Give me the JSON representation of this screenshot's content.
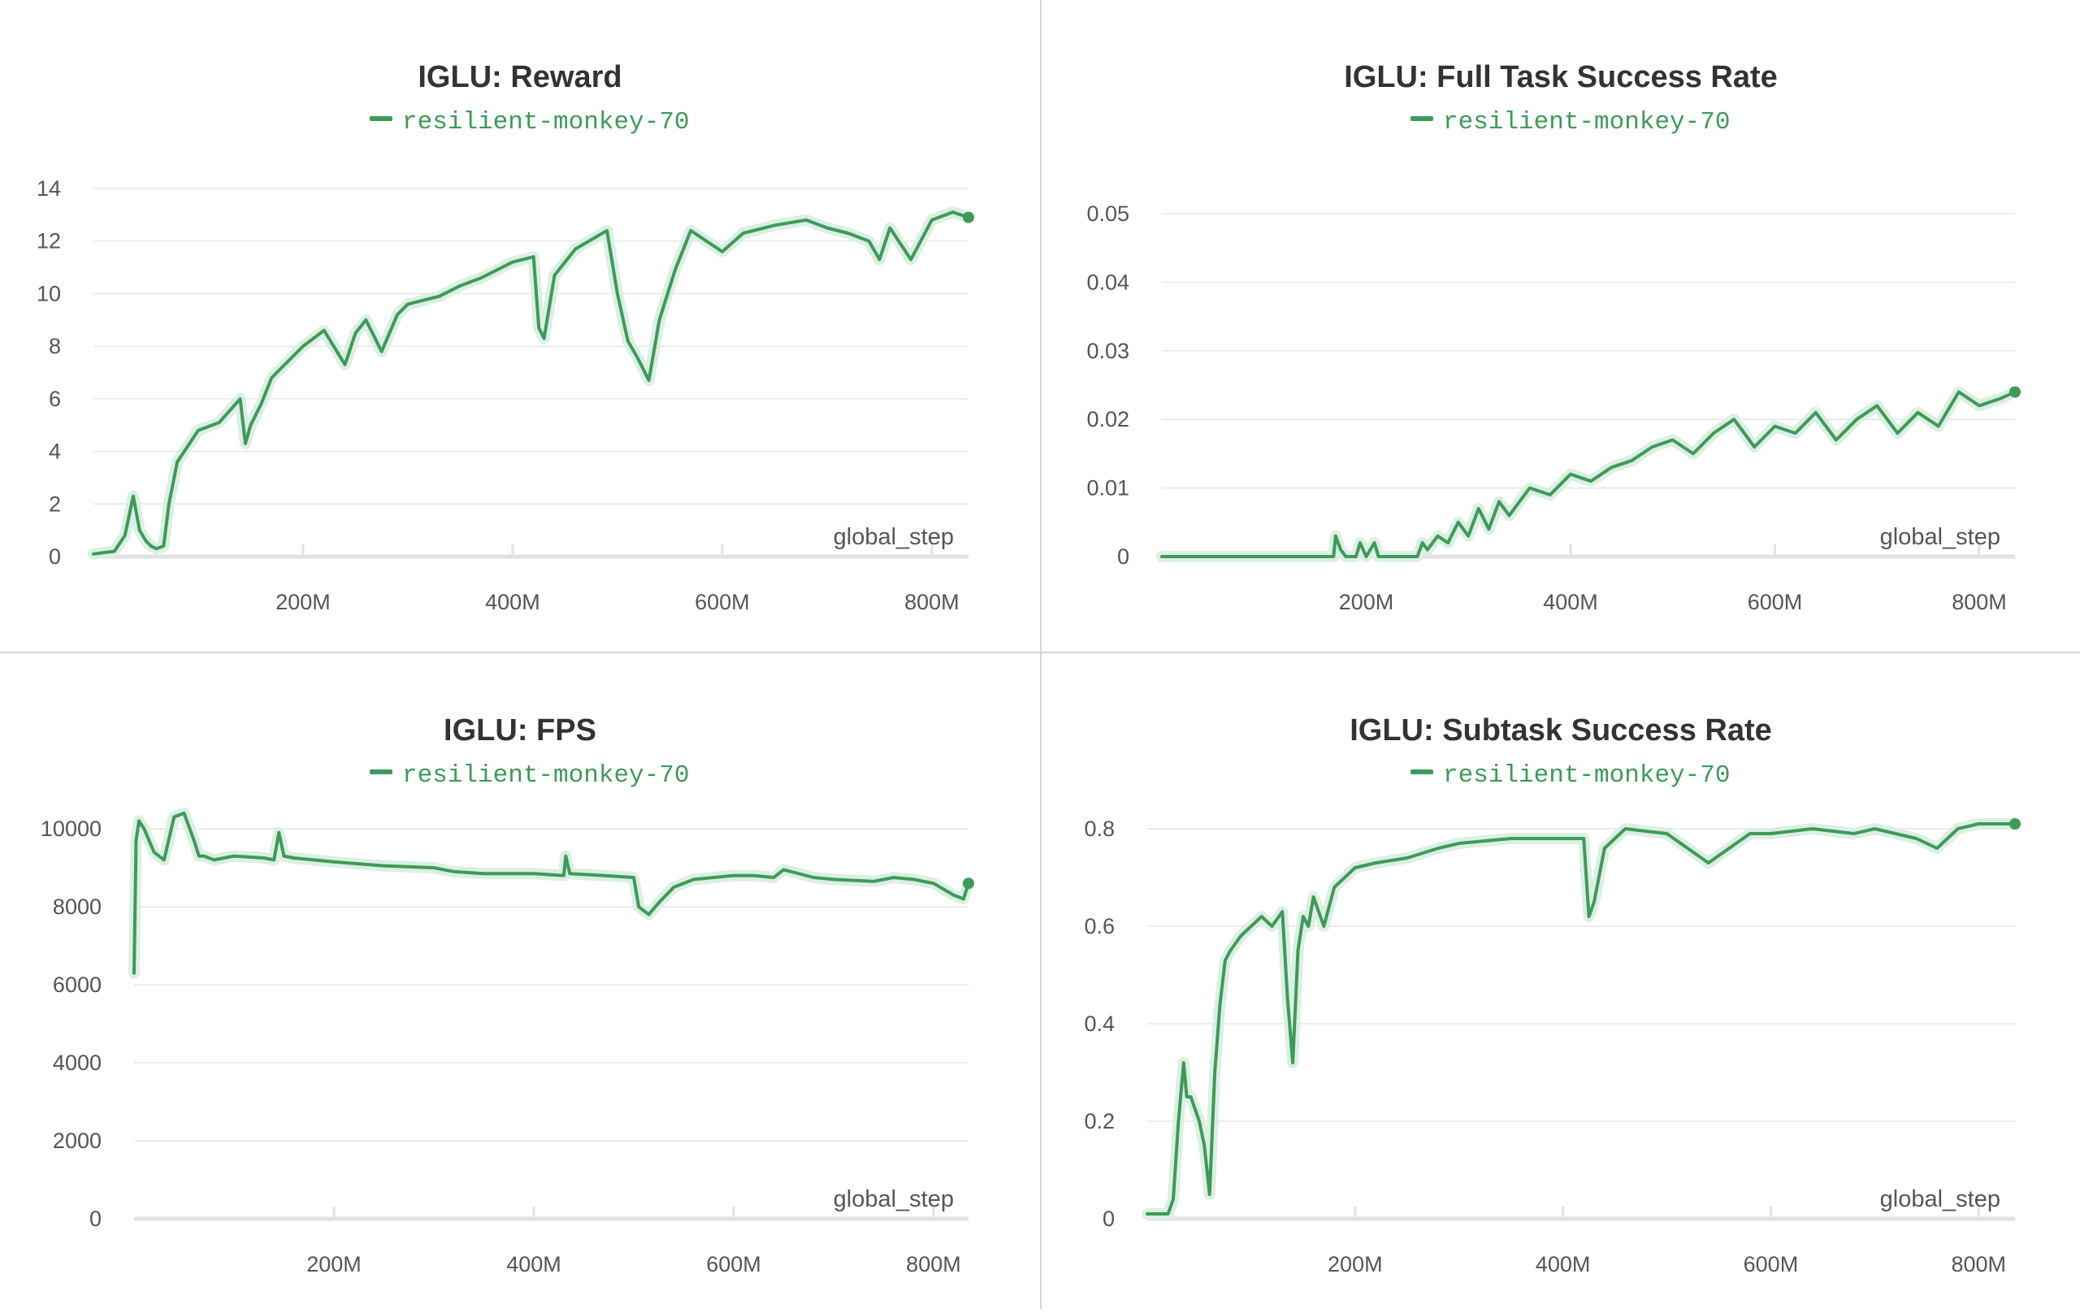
{
  "colors": {
    "series": "#3e9a5a",
    "raw": "#dcefe3",
    "grid": "#e6e6e6",
    "axis": "#e2e2e2",
    "text": "#555555",
    "title": "#333333",
    "divider": "#d6d6d6"
  },
  "chart_data": [
    {
      "type": "line",
      "title": "IGLU: Reward",
      "xlabel": "global_step",
      "ylabel": "",
      "xlim": [
        0,
        835
      ],
      "ylim": [
        0,
        14
      ],
      "x_unit": "M",
      "yticks": [
        "0",
        "2",
        "4",
        "6",
        "8",
        "10",
        "12",
        "14"
      ],
      "xticks": [
        "200M",
        "400M",
        "600M",
        "800M"
      ],
      "grid": true,
      "legend": "top-center",
      "series": [
        {
          "name": "resilient-monkey-70",
          "color": "#3e9a5a",
          "x": [
            0,
            20,
            30,
            38,
            44,
            50,
            55,
            60,
            67,
            72,
            80,
            90,
            100,
            120,
            140,
            145,
            150,
            160,
            170,
            180,
            190,
            200,
            220,
            240,
            250,
            260,
            275,
            290,
            300,
            330,
            350,
            370,
            400,
            420,
            425,
            430,
            440,
            460,
            490,
            500,
            510,
            520,
            530,
            540,
            555,
            570,
            600,
            620,
            650,
            680,
            700,
            720,
            740,
            750,
            760,
            780,
            800,
            820,
            835
          ],
          "y": [
            0.1,
            0.2,
            0.8,
            2.3,
            1.0,
            0.6,
            0.4,
            0.3,
            0.4,
            2.0,
            3.6,
            4.2,
            4.8,
            5.1,
            6.0,
            4.3,
            5.0,
            5.8,
            6.8,
            7.2,
            7.6,
            8.0,
            8.6,
            7.3,
            8.5,
            9.0,
            7.8,
            9.2,
            9.6,
            9.9,
            10.3,
            10.6,
            11.2,
            11.4,
            8.7,
            8.3,
            10.7,
            11.7,
            12.4,
            10.0,
            8.2,
            7.5,
            6.7,
            9.0,
            10.9,
            12.4,
            11.6,
            12.3,
            12.6,
            12.8,
            12.5,
            12.3,
            12.0,
            11.3,
            12.5,
            11.3,
            12.8,
            13.1,
            12.9
          ]
        }
      ]
    },
    {
      "type": "line",
      "title": "IGLU: Full Task Success Rate",
      "xlabel": "global_step",
      "ylabel": "",
      "xlim": [
        0,
        835
      ],
      "ylim": [
        0,
        0.05
      ],
      "x_unit": "M",
      "yticks": [
        "0",
        "0.01",
        "0.02",
        "0.03",
        "0.04",
        "0.05"
      ],
      "xticks": [
        "200M",
        "400M",
        "600M",
        "800M"
      ],
      "grid": true,
      "legend": "top-center",
      "series": [
        {
          "name": "resilient-monkey-70",
          "color": "#3e9a5a",
          "x": [
            0,
            168,
            170,
            175,
            180,
            190,
            194,
            200,
            208,
            212,
            215,
            250,
            255,
            260,
            270,
            280,
            290,
            300,
            310,
            320,
            330,
            340,
            360,
            380,
            400,
            420,
            440,
            460,
            480,
            500,
            520,
            540,
            560,
            580,
            600,
            620,
            640,
            660,
            680,
            700,
            720,
            740,
            760,
            780,
            800,
            820,
            835
          ],
          "y": [
            0,
            0,
            0.003,
            0.001,
            0,
            0,
            0.002,
            0,
            0.002,
            0,
            0,
            0,
            0.002,
            0.001,
            0.003,
            0.002,
            0.005,
            0.003,
            0.007,
            0.004,
            0.008,
            0.006,
            0.01,
            0.009,
            0.012,
            0.011,
            0.013,
            0.014,
            0.016,
            0.017,
            0.015,
            0.018,
            0.02,
            0.016,
            0.019,
            0.018,
            0.021,
            0.017,
            0.02,
            0.022,
            0.018,
            0.021,
            0.019,
            0.024,
            0.022,
            0.023,
            0.024
          ]
        }
      ]
    },
    {
      "type": "line",
      "title": "IGLU: FPS",
      "xlabel": "global_step",
      "ylabel": "",
      "xlim": [
        0,
        835
      ],
      "ylim": [
        0,
        10000
      ],
      "x_unit": "M",
      "yticks": [
        "0",
        "2000",
        "4000",
        "6000",
        "8000",
        "10000"
      ],
      "xticks": [
        "200M",
        "400M",
        "600M",
        "800M"
      ],
      "grid": true,
      "legend": "top-center",
      "series": [
        {
          "name": "resilient-monkey-70",
          "color": "#3e9a5a",
          "x": [
            0,
            2,
            5,
            10,
            20,
            30,
            40,
            50,
            60,
            65,
            70,
            80,
            100,
            130,
            140,
            145,
            150,
            160,
            200,
            250,
            300,
            320,
            350,
            400,
            430,
            432,
            436,
            470,
            500,
            505,
            515,
            525,
            540,
            560,
            600,
            620,
            640,
            650,
            680,
            700,
            740,
            760,
            780,
            800,
            820,
            830,
            835
          ],
          "y": [
            6300,
            9700,
            10200,
            10000,
            9400,
            9200,
            10300,
            10400,
            9700,
            9300,
            9300,
            9200,
            9300,
            9250,
            9200,
            9900,
            9300,
            9250,
            9150,
            9050,
            9000,
            8900,
            8850,
            8850,
            8800,
            9300,
            8850,
            8800,
            8750,
            8000,
            7800,
            8100,
            8500,
            8700,
            8800,
            8800,
            8750,
            8950,
            8750,
            8700,
            8650,
            8750,
            8700,
            8600,
            8300,
            8200,
            8600
          ]
        }
      ]
    },
    {
      "type": "line",
      "title": "IGLU: Subtask Success Rate",
      "xlabel": "global_step",
      "ylabel": "",
      "xlim": [
        0,
        835
      ],
      "ylim": [
        0,
        0.8
      ],
      "x_unit": "M",
      "yticks": [
        "0",
        "0.2",
        "0.4",
        "0.6",
        "0.8"
      ],
      "xticks": [
        "200M",
        "400M",
        "600M",
        "800M"
      ],
      "grid": true,
      "legend": "top-center",
      "series": [
        {
          "name": "resilient-monkey-70",
          "color": "#3e9a5a",
          "x": [
            0,
            10,
            20,
            25,
            30,
            35,
            38,
            42,
            50,
            55,
            60,
            65,
            70,
            75,
            80,
            90,
            100,
            110,
            120,
            130,
            135,
            140,
            145,
            150,
            155,
            160,
            170,
            180,
            200,
            220,
            250,
            280,
            300,
            350,
            400,
            420,
            425,
            430,
            440,
            460,
            500,
            520,
            540,
            560,
            580,
            600,
            640,
            680,
            700,
            740,
            760,
            780,
            800,
            835
          ],
          "y": [
            0.01,
            0.01,
            0.01,
            0.04,
            0.2,
            0.32,
            0.25,
            0.25,
            0.2,
            0.15,
            0.05,
            0.3,
            0.44,
            0.53,
            0.55,
            0.58,
            0.6,
            0.62,
            0.6,
            0.63,
            0.45,
            0.32,
            0.55,
            0.62,
            0.6,
            0.66,
            0.6,
            0.68,
            0.72,
            0.73,
            0.74,
            0.76,
            0.77,
            0.78,
            0.78,
            0.78,
            0.62,
            0.65,
            0.76,
            0.8,
            0.79,
            0.76,
            0.73,
            0.76,
            0.79,
            0.79,
            0.8,
            0.79,
            0.8,
            0.78,
            0.76,
            0.8,
            0.81,
            0.81
          ]
        }
      ]
    }
  ]
}
